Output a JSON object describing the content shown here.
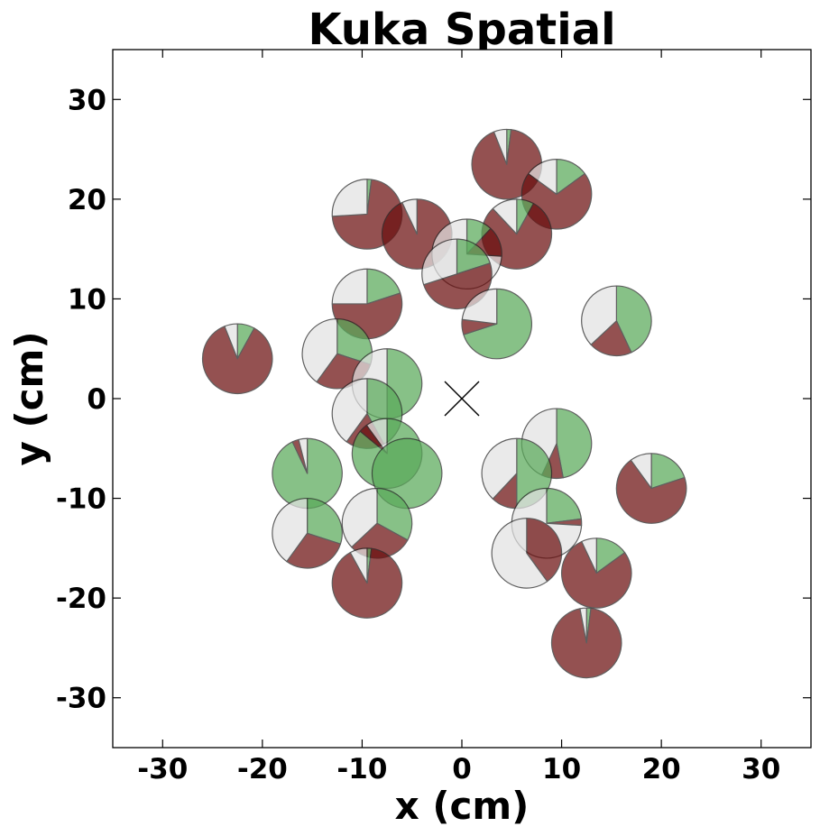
{
  "chart_data": {
    "type": "scatter",
    "title": "Kuka Spatial",
    "xlabel": "x (cm)",
    "ylabel": "y (cm)",
    "xlim": [
      -35,
      35
    ],
    "ylim": [
      -35,
      35
    ],
    "xticks": [
      -30,
      -20,
      -10,
      0,
      10,
      20,
      30
    ],
    "yticks": [
      -30,
      -20,
      -10,
      0,
      10,
      20,
      30
    ],
    "grid": false,
    "marker_radius_cm": 3.5,
    "center_marker": {
      "x": 0,
      "y": 0,
      "symbol": "x"
    },
    "slice_order": [
      "success",
      "failure",
      "unknown"
    ],
    "colors": {
      "success": "#5aaa5a",
      "failure": "#6b0f0f",
      "unknown": "#e2e2e2"
    },
    "points": [
      {
        "x": 4.5,
        "y": 23.5,
        "success": 0.02,
        "failure": 0.92,
        "unknown": 0.06
      },
      {
        "x": 9.5,
        "y": 20.5,
        "success": 0.15,
        "failure": 0.7,
        "unknown": 0.15
      },
      {
        "x": -9.5,
        "y": 18.5,
        "success": 0.02,
        "failure": 0.72,
        "unknown": 0.26
      },
      {
        "x": -4.5,
        "y": 16.5,
        "success": 0.0,
        "failure": 0.93,
        "unknown": 0.07
      },
      {
        "x": 5.5,
        "y": 16.5,
        "success": 0.08,
        "failure": 0.8,
        "unknown": 0.12
      },
      {
        "x": 0.5,
        "y": 14.5,
        "success": 0.12,
        "failure": 0.14,
        "unknown": 0.74
      },
      {
        "x": -0.5,
        "y": 12.5,
        "success": 0.2,
        "failure": 0.5,
        "unknown": 0.3
      },
      {
        "x": -9.5,
        "y": 9.5,
        "success": 0.2,
        "failure": 0.55,
        "unknown": 0.25
      },
      {
        "x": 3.5,
        "y": 7.5,
        "success": 0.7,
        "failure": 0.07,
        "unknown": 0.23
      },
      {
        "x": 15.5,
        "y": 7.8,
        "success": 0.43,
        "failure": 0.2,
        "unknown": 0.37
      },
      {
        "x": -22.5,
        "y": 4.0,
        "success": 0.08,
        "failure": 0.86,
        "unknown": 0.06
      },
      {
        "x": -12.5,
        "y": 4.5,
        "success": 0.3,
        "failure": 0.3,
        "unknown": 0.4
      },
      {
        "x": -7.5,
        "y": 1.5,
        "success": 0.5,
        "failure": 0.0,
        "unknown": 0.5
      },
      {
        "x": -9.5,
        "y": -1.5,
        "success": 0.42,
        "failure": 0.18,
        "unknown": 0.4
      },
      {
        "x": -7.5,
        "y": -5.5,
        "success": 0.86,
        "failure": 0.04,
        "unknown": 0.1
      },
      {
        "x": -5.5,
        "y": -7.5,
        "success": 1.0,
        "failure": 0.0,
        "unknown": 0.0
      },
      {
        "x": -15.5,
        "y": -7.5,
        "success": 0.93,
        "failure": 0.03,
        "unknown": 0.04
      },
      {
        "x": 9.5,
        "y": -4.5,
        "success": 0.47,
        "failure": 0.1,
        "unknown": 0.43
      },
      {
        "x": 19.0,
        "y": -9.0,
        "success": 0.2,
        "failure": 0.7,
        "unknown": 0.1
      },
      {
        "x": 5.5,
        "y": -7.5,
        "success": 0.5,
        "failure": 0.12,
        "unknown": 0.38
      },
      {
        "x": -15.5,
        "y": -13.5,
        "success": 0.3,
        "failure": 0.3,
        "unknown": 0.4
      },
      {
        "x": -8.5,
        "y": -12.5,
        "success": 0.33,
        "failure": 0.3,
        "unknown": 0.37
      },
      {
        "x": 8.5,
        "y": -12.5,
        "success": 0.23,
        "failure": 0.03,
        "unknown": 0.74
      },
      {
        "x": 6.5,
        "y": -15.5,
        "success": 0.0,
        "failure": 0.4,
        "unknown": 0.6
      },
      {
        "x": 13.5,
        "y": -17.5,
        "success": 0.15,
        "failure": 0.78,
        "unknown": 0.07
      },
      {
        "x": -9.5,
        "y": -18.5,
        "success": 0.02,
        "failure": 0.9,
        "unknown": 0.08
      },
      {
        "x": 12.5,
        "y": -24.5,
        "success": 0.02,
        "failure": 0.95,
        "unknown": 0.03
      }
    ]
  }
}
